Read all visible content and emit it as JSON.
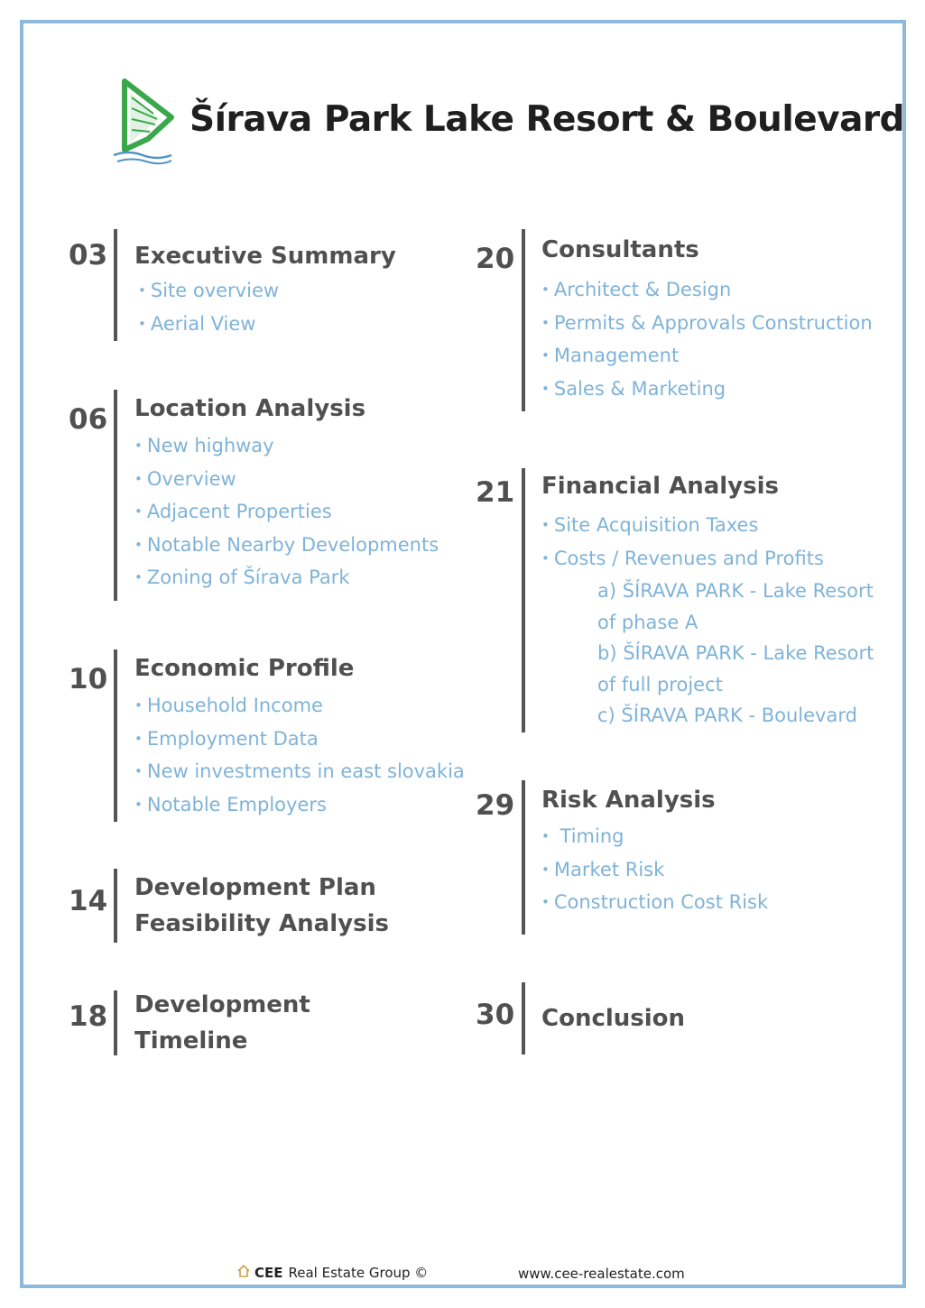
{
  "document": {
    "title": "Šírava Park Lake Resort & Boulevard"
  },
  "colors": {
    "frame": "#8db9dc",
    "heading": "#505050",
    "item": "#7fb3d8",
    "logo_green": "#3aa84a",
    "logo_blue": "#4f94c6"
  },
  "left_column": [
    {
      "page": "03",
      "title": "Executive Summary",
      "items": [
        "Site overview",
        "Aerial View"
      ]
    },
    {
      "page": "06",
      "title": "Location Analysis",
      "items": [
        "New highway",
        "Overview",
        "Adjacent Properties",
        "Notable Nearby Developments",
        "Zoning of Šírava Park"
      ]
    },
    {
      "page": "10",
      "title": "Economic Profile",
      "items": [
        "Household Income",
        "Employment Data",
        "New investments in east slovakia",
        "Notable Employers"
      ]
    },
    {
      "page": "14",
      "title_lines": [
        "Development Plan",
        "Feasibility Analysis"
      ]
    },
    {
      "page": "18",
      "title_lines": [
        "Development",
        "Timeline"
      ]
    }
  ],
  "right_column": [
    {
      "page": "20",
      "title": "Consultants",
      "items": [
        "Architect & Design",
        "Permits & Approvals Construction",
        "Management",
        "Sales & Marketing"
      ]
    },
    {
      "page": "21",
      "title": "Financial Analysis",
      "items": [
        "Site Acquisition Taxes",
        "Costs / Revenues and Profits"
      ],
      "sub_items": [
        "a) ŠÍRAVA PARK - Lake Resort",
        "of phase A",
        "b) ŠÍRAVA PARK - Lake Resort",
        "of full project",
        "c) ŠÍRAVA PARK - Boulevard"
      ]
    },
    {
      "page": "29",
      "title": "Risk Analysis",
      "items": [
        " Timing",
        "Market Risk",
        "Construction Cost Risk"
      ]
    },
    {
      "page": "30",
      "title": "Conclusion"
    }
  ],
  "footer": {
    "company_short": "CEE",
    "company_rest": "Real Estate Group ©",
    "website": "www.cee-realestate.com",
    "home_icon": "home-outline-icon"
  }
}
